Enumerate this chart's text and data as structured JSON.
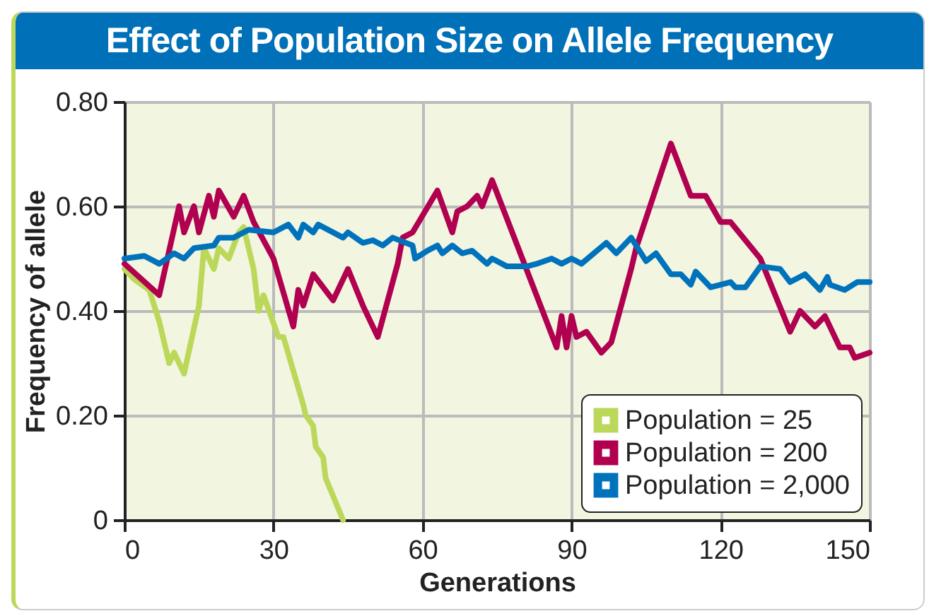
{
  "chart_data": {
    "type": "line",
    "title": "Effect of Population Size on Allele Frequency",
    "xlabel": "Generations",
    "ylabel": "Frequency of allele",
    "xlim": [
      0,
      150
    ],
    "xticks": [
      0,
      30,
      60,
      90,
      120,
      150
    ],
    "ylim": [
      0,
      0.8
    ],
    "yticks": [
      0,
      {
        "value": 0.2,
        "label": "0.20"
      },
      {
        "value": 0.4,
        "label": "0.40"
      },
      {
        "value": 0.6,
        "label": "0.60"
      },
      {
        "value": 0.8,
        "label": "0.80"
      }
    ],
    "grid": true,
    "legend": "bottom right",
    "line_style": "solid",
    "series": [
      {
        "name": "Population = 25",
        "color": "#bcd85a",
        "x": [
          0,
          2,
          5,
          7,
          9,
          10,
          12,
          15,
          16,
          18,
          19,
          21,
          23,
          24,
          26,
          27,
          28,
          31,
          32,
          36,
          36.5,
          38,
          38.5,
          40,
          40.5,
          44
        ],
        "values": [
          0.48,
          0.46,
          0.44,
          0.38,
          0.3,
          0.32,
          0.28,
          0.41,
          0.52,
          0.48,
          0.52,
          0.5,
          0.55,
          0.56,
          0.48,
          0.4,
          0.43,
          0.35,
          0.35,
          0.22,
          0.2,
          0.18,
          0.14,
          0.12,
          0.08,
          0
        ]
      },
      {
        "name": "Population = 200",
        "color": "#b0004f",
        "x": [
          0,
          7,
          11,
          12,
          14,
          15,
          17,
          18,
          19,
          22,
          24,
          26,
          30,
          34,
          35,
          36,
          38,
          42,
          45,
          48,
          51,
          55,
          56,
          58,
          63,
          66,
          67,
          69,
          71,
          72,
          74,
          87,
          88,
          89,
          90,
          91,
          93,
          96,
          98,
          102,
          103,
          110,
          114,
          117,
          120,
          122,
          128,
          134,
          136,
          139,
          141,
          144,
          146,
          147,
          150
        ],
        "values": [
          0.49,
          0.43,
          0.6,
          0.55,
          0.6,
          0.55,
          0.62,
          0.58,
          0.63,
          0.58,
          0.62,
          0.57,
          0.5,
          0.37,
          0.44,
          0.41,
          0.47,
          0.42,
          0.48,
          0.41,
          0.35,
          0.49,
          0.54,
          0.55,
          0.63,
          0.55,
          0.59,
          0.6,
          0.62,
          0.6,
          0.65,
          0.33,
          0.39,
          0.33,
          0.39,
          0.35,
          0.36,
          0.32,
          0.34,
          0.48,
          0.52,
          0.72,
          0.62,
          0.62,
          0.57,
          0.57,
          0.5,
          0.36,
          0.4,
          0.37,
          0.39,
          0.33,
          0.33,
          0.31,
          0.32
        ]
      },
      {
        "name": "Population = 2,000",
        "color": "#0072bc",
        "x": [
          0,
          4,
          7,
          10,
          12,
          14,
          18,
          19,
          22,
          25,
          30,
          33,
          35,
          36,
          38,
          39,
          44,
          45,
          48,
          50,
          52,
          54,
          58,
          58.5,
          61,
          63,
          64,
          66,
          68,
          70,
          73,
          74,
          77,
          81,
          83,
          86,
          88,
          90,
          92,
          97,
          99,
          102,
          105,
          107,
          110,
          112,
          114,
          115,
          118,
          122,
          123,
          125,
          128,
          132,
          134,
          137,
          140,
          141.5,
          142,
          145,
          147.5,
          150
        ],
        "values": [
          0.5,
          0.505,
          0.49,
          0.51,
          0.5,
          0.52,
          0.525,
          0.54,
          0.54,
          0.555,
          0.55,
          0.565,
          0.54,
          0.565,
          0.55,
          0.565,
          0.54,
          0.55,
          0.53,
          0.535,
          0.525,
          0.54,
          0.525,
          0.5,
          0.515,
          0.525,
          0.51,
          0.525,
          0.51,
          0.515,
          0.49,
          0.5,
          0.485,
          0.485,
          0.49,
          0.5,
          0.49,
          0.5,
          0.49,
          0.53,
          0.51,
          0.54,
          0.495,
          0.51,
          0.47,
          0.47,
          0.45,
          0.475,
          0.445,
          0.455,
          0.445,
          0.445,
          0.485,
          0.48,
          0.455,
          0.47,
          0.44,
          0.465,
          0.45,
          0.44,
          0.455,
          0.455
        ]
      }
    ]
  }
}
